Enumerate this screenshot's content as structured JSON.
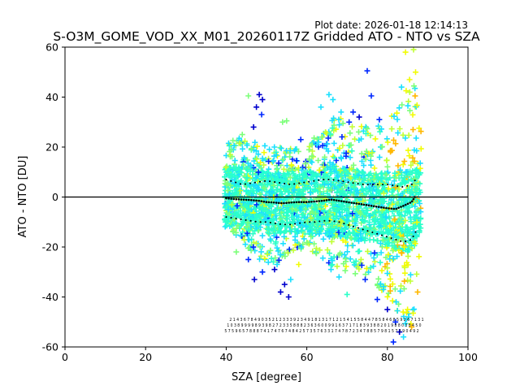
{
  "chart_data": {
    "type": "scatter",
    "title": "S-O3M_GOME_VOD_XX_M01_20260117Z Gridded ATO - NTO vs SZA",
    "plot_date": "Plot date: 2026-01-18 12:14:13",
    "xlabel": "SZA [degree]",
    "ylabel": "ATO - NTO [DU]",
    "xlim": [
      0,
      100
    ],
    "ylim": [
      -60,
      60
    ],
    "xticks": [
      0,
      20,
      40,
      60,
      80,
      100
    ],
    "yticks": [
      -60,
      -40,
      -20,
      0,
      20,
      40,
      60
    ],
    "grid": false,
    "reference_line": {
      "y": 0,
      "color": "#000000"
    },
    "point_colors": [
      "#2dffc9",
      "#23ffd4",
      "#1ce0ff",
      "#7dff7a",
      "#c1ff36",
      "#f1fc06",
      "#ffb700",
      "#0000cd",
      "#0028ff"
    ],
    "envelope": {
      "x": [
        40,
        44,
        48,
        52,
        56,
        60,
        64,
        68,
        72,
        76,
        80,
        84,
        86,
        87,
        88
      ],
      "upper": [
        22,
        24,
        22,
        20,
        20,
        20,
        30,
        33,
        30,
        28,
        30,
        40,
        50,
        45,
        30
      ],
      "lower": [
        -12,
        -18,
        -25,
        -28,
        -22,
        -20,
        -25,
        -30,
        -32,
        -35,
        -40,
        -50,
        -55,
        -45,
        -25
      ],
      "core_upper": [
        12,
        12,
        11,
        10,
        10,
        10,
        12,
        12,
        11,
        10,
        10,
        10,
        12,
        12,
        10
      ],
      "core_lower": [
        -12,
        -13,
        -14,
        -15,
        -15,
        -15,
        -15,
        -16,
        -17,
        -18,
        -20,
        -22,
        -22,
        -20,
        -15
      ]
    },
    "median": {
      "x": [
        40,
        42,
        44,
        46,
        48,
        50,
        52,
        54,
        56,
        58,
        60,
        62,
        64,
        66,
        68,
        70,
        72,
        74,
        76,
        78,
        80,
        82,
        84,
        86,
        87
      ],
      "y": [
        -0.5,
        -0.8,
        -1.0,
        -1.2,
        -1.5,
        -2.0,
        -2.2,
        -2.5,
        -2.2,
        -2.0,
        -2.0,
        -1.8,
        -1.5,
        -1.0,
        -1.5,
        -2.0,
        -2.5,
        -3.0,
        -3.5,
        -4.0,
        -4.5,
        -4.8,
        -3.5,
        -2.0,
        0.5
      ]
    },
    "percentile_high": {
      "x": [
        40,
        42,
        44,
        46,
        48,
        50,
        52,
        54,
        56,
        58,
        60,
        62,
        64,
        66,
        68,
        70,
        72,
        74,
        76,
        78,
        80,
        82,
        84,
        86,
        87
      ],
      "y": [
        7,
        6,
        5,
        5.5,
        6,
        6.5,
        6,
        5.5,
        5,
        5.5,
        6,
        6.5,
        7,
        7,
        6.5,
        6,
        5.5,
        5,
        5,
        5,
        5,
        4.5,
        4,
        5,
        7
      ]
    },
    "percentile_low": {
      "x": [
        40,
        42,
        44,
        46,
        48,
        50,
        52,
        54,
        56,
        58,
        60,
        62,
        64,
        66,
        68,
        70,
        72,
        74,
        76,
        78,
        80,
        82,
        84,
        86,
        87
      ],
      "y": [
        -8,
        -8.5,
        -9,
        -9.5,
        -10,
        -10,
        -10.5,
        -11,
        -11,
        -10.5,
        -10,
        -10,
        -9.5,
        -9.5,
        -10,
        -11,
        -12,
        -13,
        -14,
        -15,
        -16,
        -17,
        -18,
        -17,
        -14
      ]
    },
    "outliers": [
      {
        "x": 48.2,
        "y": 41,
        "c": "#0000cd"
      },
      {
        "x": 49.0,
        "y": 39,
        "c": "#0000cd"
      },
      {
        "x": 47.5,
        "y": 36,
        "c": "#0000cd"
      },
      {
        "x": 48.8,
        "y": 33,
        "c": "#0028ff"
      },
      {
        "x": 46.8,
        "y": 28,
        "c": "#0000cd"
      },
      {
        "x": 45.5,
        "y": 40.5,
        "c": "#7dff7a"
      },
      {
        "x": 54.0,
        "y": 30,
        "c": "#7dff7a"
      },
      {
        "x": 55.0,
        "y": 30.5,
        "c": "#7dff7a"
      },
      {
        "x": 65.5,
        "y": 41,
        "c": "#1ce0ff"
      },
      {
        "x": 66.5,
        "y": 39,
        "c": "#1ce0ff"
      },
      {
        "x": 75.0,
        "y": 50.5,
        "c": "#0028ff"
      },
      {
        "x": 76.0,
        "y": 40.5,
        "c": "#0028ff"
      },
      {
        "x": 73.0,
        "y": 32,
        "c": "#0000cd"
      },
      {
        "x": 70.5,
        "y": 30,
        "c": "#0028ff"
      },
      {
        "x": 71.5,
        "y": 34,
        "c": "#0028ff"
      },
      {
        "x": 84.5,
        "y": 58,
        "c": "#f1fc06"
      },
      {
        "x": 86.5,
        "y": 59,
        "c": "#c1ff36"
      },
      {
        "x": 87.0,
        "y": 50,
        "c": "#f1fc06"
      },
      {
        "x": 83.5,
        "y": 44,
        "c": "#1ce0ff"
      },
      {
        "x": 85.5,
        "y": 47,
        "c": "#f1fc06"
      },
      {
        "x": 47.0,
        "y": -33,
        "c": "#0000cd"
      },
      {
        "x": 49.0,
        "y": -30,
        "c": "#0028ff"
      },
      {
        "x": 52.0,
        "y": -29,
        "c": "#0000cd"
      },
      {
        "x": 53.5,
        "y": -38,
        "c": "#0000cd"
      },
      {
        "x": 54.5,
        "y": -35,
        "c": "#0000cd"
      },
      {
        "x": 55.5,
        "y": -40,
        "c": "#0000cd"
      },
      {
        "x": 56.0,
        "y": -33,
        "c": "#1ce0ff"
      },
      {
        "x": 45.5,
        "y": -25,
        "c": "#0028ff"
      },
      {
        "x": 58.0,
        "y": -27,
        "c": "#f1fc06"
      },
      {
        "x": 66.0,
        "y": -29,
        "c": "#1ce0ff"
      },
      {
        "x": 68.0,
        "y": -32,
        "c": "#1ce0ff"
      },
      {
        "x": 70.0,
        "y": -39,
        "c": "#2dffc9"
      },
      {
        "x": 74.5,
        "y": -33,
        "c": "#0028ff"
      },
      {
        "x": 77.5,
        "y": -41,
        "c": "#0028ff"
      },
      {
        "x": 80.0,
        "y": -45,
        "c": "#0000cd"
      },
      {
        "x": 82.0,
        "y": -50,
        "c": "#0028ff"
      },
      {
        "x": 83.0,
        "y": -54,
        "c": "#0000cd"
      },
      {
        "x": 81.5,
        "y": -58,
        "c": "#0028ff"
      },
      {
        "x": 84.0,
        "y": -56,
        "c": "#1ce0ff"
      },
      {
        "x": 86.0,
        "y": -52,
        "c": "#ffb700"
      },
      {
        "x": 85.0,
        "y": -45,
        "c": "#f1fc06"
      },
      {
        "x": 87.5,
        "y": -38,
        "c": "#ffb700"
      },
      {
        "x": 79.0,
        "y": -37,
        "c": "#1ce0ff"
      },
      {
        "x": 42.5,
        "y": -22,
        "c": "#7dff7a"
      },
      {
        "x": 44.0,
        "y": 25,
        "c": "#7dff7a"
      },
      {
        "x": 58.5,
        "y": 23,
        "c": "#0028ff"
      },
      {
        "x": 62.5,
        "y": 21,
        "c": "#1ce0ff"
      },
      {
        "x": 63.5,
        "y": 36,
        "c": "#1ce0ff"
      },
      {
        "x": 68.5,
        "y": 34,
        "c": "#1ce0ff"
      },
      {
        "x": 78.0,
        "y": 31,
        "c": "#0028ff"
      }
    ],
    "count_rows": [
      "2 1 4 3 6 7 8 4 9 0 3 5 2 1 2 3 3 3 9 2 3 4 9 1 8 1 3 1 7 1 2 1 5 4 1 5 5 8 4 4 7 8 5 8 4 6 8 5 9 2 6 7 1 3 1",
      "1 0 3 8 9 9 9 9 8 9 3 9 8 2 7 2 3 3 5 8 8 8 2 3 6 3 6 0 0 9 9 1 6 3 7 1 7 1 8 3 9 3 8 8 2 0 1 9 8 8 0 3 8 4 5 0",
      "5 7 5 9 6 5 7 8 8 8 7 4 1 7 4 7 6 7 4 8 4 2 5 7 3 5 7 6 3 3 1 7 4 7 8 7 2 3 4 7 8 8 5 7 9 8 1 5 7 2 9 0 4 9 2"
    ]
  }
}
